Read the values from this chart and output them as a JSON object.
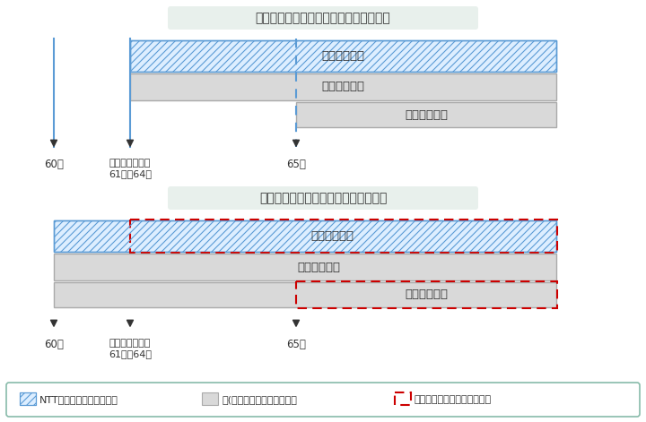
{
  "bg_color": "#ffffff",
  "panel_bg": "#e8f0ec",
  "title1": "老齢厚生年金の繰上げ請求をしない場合",
  "title2": "老齢厚生年金の繰上げ請求をする場合",
  "hatch_color": "#5b9bd5",
  "hatch_fill": "#ddeeff",
  "gray_fill": "#d9d9d9",
  "gray_border": "#aaaaaa",
  "red_dash_color": "#cc0000",
  "timeline_color": "#5b9bd5",
  "arrow_color": "#333333",
  "label_60": "60歳",
  "label_61_64": "生年月日により\n61歳〜64歳",
  "label_65": "65歳",
  "legend_ntt": "NTT企業年金基金から支給",
  "legend_koku": "国(日本年金機構）から支給",
  "legend_reduce": "は繰上げにより減額される分",
  "bar_label1": "退職共済年金",
  "bar_label2": "老齢厚生年金",
  "bar_label3": "老齢基礎年金",
  "text_color": "#333333",
  "font_size_title": 10,
  "font_size_bar": 9.5,
  "font_size_axis": 8.5
}
